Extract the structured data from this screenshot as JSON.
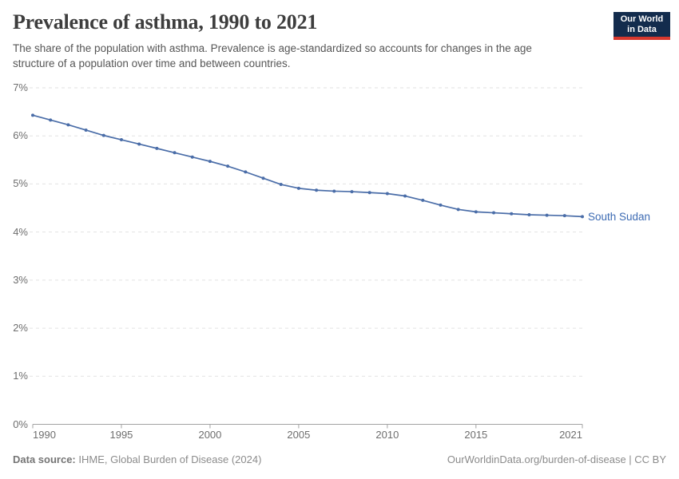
{
  "header": {
    "title": "Prevalence of asthma, 1990 to 2021",
    "subtitle_lines": [
      "The share of the population with asthma. Prevalence is age-standardized so accounts for changes in the age",
      "structure of a population over time and between countries."
    ],
    "logo": {
      "line1": "Our World",
      "line2": "in Data"
    }
  },
  "chart_data": {
    "type": "line",
    "title": "Prevalence of asthma, 1990 to 2021",
    "xlabel": "",
    "ylabel": "",
    "x": [
      1990,
      1991,
      1992,
      1993,
      1994,
      1995,
      1996,
      1997,
      1998,
      1999,
      2000,
      2001,
      2002,
      2003,
      2004,
      2005,
      2006,
      2007,
      2008,
      2009,
      2010,
      2011,
      2012,
      2013,
      2014,
      2015,
      2016,
      2017,
      2018,
      2019,
      2020,
      2021
    ],
    "series": [
      {
        "name": "South Sudan",
        "color": "#4a6da8",
        "label_color": "#3d6bb3",
        "values": [
          6.43,
          6.33,
          6.23,
          6.12,
          6.01,
          5.92,
          5.83,
          5.74,
          5.65,
          5.56,
          5.47,
          5.37,
          5.25,
          5.12,
          4.99,
          4.91,
          4.87,
          4.85,
          4.84,
          4.82,
          4.8,
          4.75,
          4.66,
          4.56,
          4.47,
          4.42,
          4.4,
          4.38,
          4.36,
          4.35,
          4.34,
          4.32
        ]
      }
    ],
    "xlim": [
      1990,
      2021
    ],
    "ylim": [
      0,
      7
    ],
    "x_ticks": [
      1990,
      1995,
      2000,
      2005,
      2010,
      2015,
      2021
    ],
    "y_ticks": [
      0,
      1,
      2,
      3,
      4,
      5,
      6,
      7
    ],
    "y_tick_suffix": "%",
    "grid": "horizontal-dashed",
    "legend_position": "line-end-label"
  },
  "footer": {
    "source_label": "Data source:",
    "source_value": " IHME, Global Burden of Disease (2024)",
    "link": "OurWorldinData.org/burden-of-disease | CC BY"
  },
  "colors": {
    "gridline": "#e2e2e2",
    "axis": "#a3a3a3",
    "tick_text": "#6e6e6e",
    "title_text": "#3d3d3d",
    "subtitle_text": "#565656",
    "footer_text": "#8b8b8b",
    "logo_bg": "#132c4d",
    "logo_accent": "#d7382e",
    "series_blue": "#4a6da8"
  }
}
